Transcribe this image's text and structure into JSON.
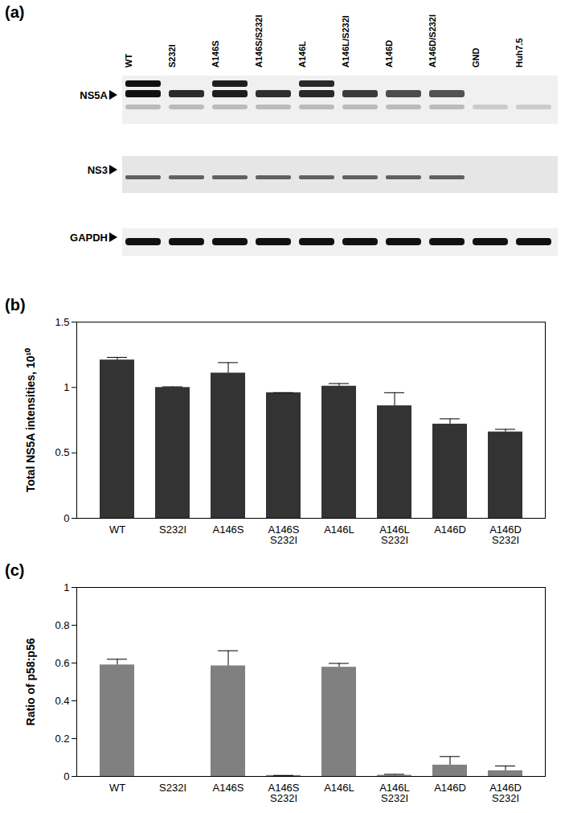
{
  "blot": {
    "label": "(a)",
    "lanes": [
      "WT",
      "S232I",
      "A146S",
      "A146S/S232I",
      "A146L",
      "A146L/S232I",
      "A146D",
      "A146D/S232I",
      "GND",
      "Huh7.5"
    ],
    "rows": [
      "NS5A",
      "NS3",
      "GAPDH"
    ]
  },
  "chart_data": [
    {
      "type": "bar",
      "title": "(b)",
      "categories": [
        "WT",
        "S232I",
        "A146S",
        "A146S\nS232I",
        "A146L",
        "A146L\nS232I",
        "A146D",
        "A146D\nS232I"
      ],
      "values": [
        1.21,
        1.0,
        1.11,
        0.96,
        1.01,
        0.86,
        0.72,
        0.66
      ],
      "errors": [
        0.02,
        0.005,
        0.08,
        0.0,
        0.02,
        0.1,
        0.04,
        0.02
      ],
      "color": "#333333",
      "ylabel": "Total NS5A intensities, 10¹⁰",
      "ylim": [
        0,
        1.5
      ],
      "yticks": [
        0,
        0.5,
        1,
        1.5
      ]
    },
    {
      "type": "bar",
      "title": "(c)",
      "categories": [
        "WT",
        "S232I",
        "A146S",
        "A146S\nS232I",
        "A146L",
        "A146L\nS232I",
        "A146D",
        "A146D\nS232I"
      ],
      "values": [
        0.59,
        0.0,
        0.585,
        0.005,
        0.578,
        0.006,
        0.06,
        0.03
      ],
      "errors": [
        0.03,
        0.0,
        0.08,
        0.0,
        0.02,
        0.005,
        0.045,
        0.025
      ],
      "color": "#808080",
      "ylabel": "Ratio of p58:p56",
      "ylim": [
        0,
        1
      ],
      "yticks": [
        0,
        0.2,
        0.4,
        0.6,
        0.8,
        1
      ]
    }
  ]
}
